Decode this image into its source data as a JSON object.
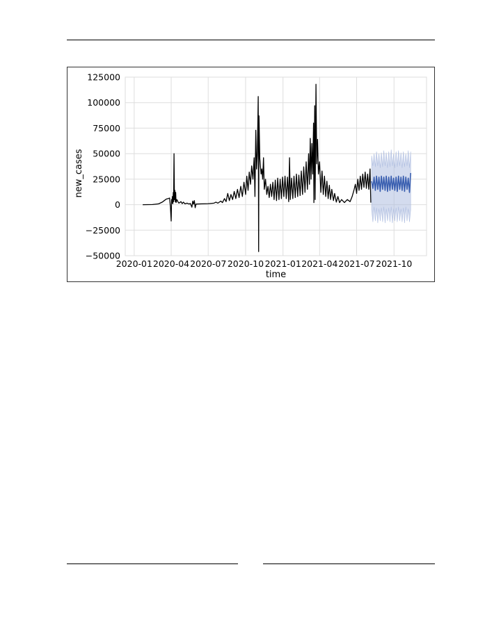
{
  "page": {
    "background": "#ffffff"
  },
  "chart_data": {
    "type": "line",
    "title": "",
    "xlabel": "time",
    "ylabel": "new_cases",
    "ylim": [
      -50000,
      125000
    ],
    "xlim": [
      "2019-12-10",
      "2021-12-20"
    ],
    "grid": true,
    "x_ticks": [
      "2020-01",
      "2020-04",
      "2020-07",
      "2020-10",
      "2021-01",
      "2021-04",
      "2021-07",
      "2021-10"
    ],
    "y_ticks": [
      "125000",
      "100000",
      "75000",
      "50000",
      "25000",
      "0",
      "−25000",
      "−50000"
    ],
    "colors": {
      "actual": "#000000",
      "forecast": "#3a5fb0",
      "interval": "#aebde0",
      "grid": "#dddddd"
    },
    "series": [
      {
        "role": "actual",
        "points": [
          [
            "2020-01-22",
            0
          ],
          [
            "2020-02-15",
            100
          ],
          [
            "2020-03-01",
            800
          ],
          [
            "2020-03-10",
            2500
          ],
          [
            "2020-03-15",
            4000
          ],
          [
            "2020-03-20",
            5500
          ],
          [
            "2020-03-25",
            6000
          ],
          [
            "2020-03-28",
            6500
          ],
          [
            "2020-03-30",
            -2000
          ],
          [
            "2020-04-01",
            -16000
          ],
          [
            "2020-04-02",
            5000
          ],
          [
            "2020-04-03",
            1500
          ],
          [
            "2020-04-04",
            8000
          ],
          [
            "2020-04-05",
            1000
          ],
          [
            "2020-04-06",
            12000
          ],
          [
            "2020-04-07",
            3000
          ],
          [
            "2020-04-08",
            50000
          ],
          [
            "2020-04-09",
            5000
          ],
          [
            "2020-04-10",
            14000
          ],
          [
            "2020-04-11",
            3000
          ],
          [
            "2020-04-12",
            12000
          ],
          [
            "2020-04-13",
            2000
          ],
          [
            "2020-04-15",
            5000
          ],
          [
            "2020-04-18",
            2500
          ],
          [
            "2020-04-20",
            1500
          ],
          [
            "2020-04-25",
            3000
          ],
          [
            "2020-04-28",
            1000
          ],
          [
            "2020-05-01",
            2500
          ],
          [
            "2020-05-05",
            800
          ],
          [
            "2020-05-10",
            1500
          ],
          [
            "2020-05-15",
            600
          ],
          [
            "2020-05-18",
            1200
          ],
          [
            "2020-05-22",
            -2500
          ],
          [
            "2020-05-24",
            3500
          ],
          [
            "2020-05-26",
            500
          ],
          [
            "2020-05-28",
            4000
          ],
          [
            "2020-05-30",
            -3000
          ],
          [
            "2020-06-01",
            600
          ],
          [
            "2020-06-15",
            800
          ],
          [
            "2020-07-01",
            1000
          ],
          [
            "2020-07-15",
            1500
          ],
          [
            "2020-07-20",
            2500
          ],
          [
            "2020-07-25",
            1500
          ],
          [
            "2020-08-01",
            3500
          ],
          [
            "2020-08-05",
            2000
          ],
          [
            "2020-08-10",
            6000
          ],
          [
            "2020-08-14",
            3000
          ],
          [
            "2020-08-18",
            11000
          ],
          [
            "2020-08-22",
            4000
          ],
          [
            "2020-08-26",
            10000
          ],
          [
            "2020-08-30",
            5000
          ],
          [
            "2020-09-03",
            13000
          ],
          [
            "2020-09-07",
            6000
          ],
          [
            "2020-09-11",
            15000
          ],
          [
            "2020-09-15",
            7000
          ],
          [
            "2020-09-19",
            18000
          ],
          [
            "2020-09-23",
            8000
          ],
          [
            "2020-09-27",
            22000
          ],
          [
            "2020-10-01",
            10000
          ],
          [
            "2020-10-04",
            28000
          ],
          [
            "2020-10-07",
            14000
          ],
          [
            "2020-10-10",
            32000
          ],
          [
            "2020-10-13",
            20000
          ],
          [
            "2020-10-16",
            38000
          ],
          [
            "2020-10-19",
            25000
          ],
          [
            "2020-10-22",
            46000
          ],
          [
            "2020-10-24",
            8000
          ],
          [
            "2020-10-26",
            73000
          ],
          [
            "2020-10-28",
            35000
          ],
          [
            "2020-10-30",
            52000
          ],
          [
            "2020-11-01",
            106000
          ],
          [
            "2020-11-02",
            -46000
          ],
          [
            "2020-11-03",
            87000
          ],
          [
            "2020-11-05",
            45000
          ],
          [
            "2020-11-08",
            30000
          ],
          [
            "2020-11-10",
            35000
          ],
          [
            "2020-11-12",
            25000
          ],
          [
            "2020-11-14",
            46000
          ],
          [
            "2020-11-16",
            15000
          ],
          [
            "2020-11-19",
            25000
          ],
          [
            "2020-11-22",
            10000
          ],
          [
            "2020-11-25",
            18000
          ],
          [
            "2020-11-28",
            7000
          ],
          [
            "2020-12-01",
            20000
          ],
          [
            "2020-12-04",
            8000
          ],
          [
            "2020-12-07",
            22000
          ],
          [
            "2020-12-10",
            5000
          ],
          [
            "2020-12-13",
            24000
          ],
          [
            "2020-12-16",
            4000
          ],
          [
            "2020-12-19",
            26000
          ],
          [
            "2020-12-22",
            5000
          ],
          [
            "2020-12-25",
            25000
          ],
          [
            "2020-12-28",
            6000
          ],
          [
            "2020-12-31",
            27000
          ],
          [
            "2021-01-03",
            8000
          ],
          [
            "2021-01-06",
            28000
          ],
          [
            "2021-01-09",
            6000
          ],
          [
            "2021-01-12",
            27000
          ],
          [
            "2021-01-15",
            3000
          ],
          [
            "2021-01-17",
            46000
          ],
          [
            "2021-01-19",
            5000
          ],
          [
            "2021-01-22",
            26000
          ],
          [
            "2021-01-25",
            6000
          ],
          [
            "2021-01-28",
            28000
          ],
          [
            "2021-01-31",
            7000
          ],
          [
            "2021-02-03",
            30000
          ],
          [
            "2021-02-06",
            8000
          ],
          [
            "2021-02-09",
            29000
          ],
          [
            "2021-02-12",
            9000
          ],
          [
            "2021-02-15",
            33000
          ],
          [
            "2021-02-18",
            10000
          ],
          [
            "2021-02-21",
            37000
          ],
          [
            "2021-02-24",
            12000
          ],
          [
            "2021-02-27",
            42000
          ],
          [
            "2021-03-02",
            15000
          ],
          [
            "2021-03-05",
            50000
          ],
          [
            "2021-03-07",
            20000
          ],
          [
            "2021-03-09",
            65000
          ],
          [
            "2021-03-11",
            25000
          ],
          [
            "2021-03-13",
            60000
          ],
          [
            "2021-03-15",
            30000
          ],
          [
            "2021-03-17",
            80000
          ],
          [
            "2021-03-18",
            2000
          ],
          [
            "2021-03-20",
            97000
          ],
          [
            "2021-03-21",
            5000
          ],
          [
            "2021-03-23",
            118000
          ],
          [
            "2021-03-25",
            40000
          ],
          [
            "2021-03-27",
            64000
          ],
          [
            "2021-03-29",
            30000
          ],
          [
            "2021-04-01",
            42000
          ],
          [
            "2021-04-04",
            12000
          ],
          [
            "2021-04-07",
            33000
          ],
          [
            "2021-04-10",
            10000
          ],
          [
            "2021-04-13",
            28000
          ],
          [
            "2021-04-16",
            8000
          ],
          [
            "2021-04-19",
            23000
          ],
          [
            "2021-04-22",
            6000
          ],
          [
            "2021-04-25",
            19000
          ],
          [
            "2021-04-28",
            5000
          ],
          [
            "2021-05-01",
            15000
          ],
          [
            "2021-05-05",
            4000
          ],
          [
            "2021-05-08",
            11000
          ],
          [
            "2021-05-12",
            2500
          ],
          [
            "2021-05-16",
            8000
          ],
          [
            "2021-05-20",
            2000
          ],
          [
            "2021-05-25",
            5000
          ],
          [
            "2021-06-01",
            2000
          ],
          [
            "2021-06-08",
            5000
          ],
          [
            "2021-06-15",
            3000
          ],
          [
            "2021-06-20",
            8000
          ],
          [
            "2021-06-25",
            15000
          ],
          [
            "2021-06-28",
            20000
          ],
          [
            "2021-07-01",
            11000
          ],
          [
            "2021-07-04",
            25000
          ],
          [
            "2021-07-07",
            14000
          ],
          [
            "2021-07-10",
            28000
          ],
          [
            "2021-07-13",
            15000
          ],
          [
            "2021-07-16",
            30000
          ],
          [
            "2021-07-19",
            17000
          ],
          [
            "2021-07-22",
            32000
          ],
          [
            "2021-07-25",
            16000
          ],
          [
            "2021-07-28",
            30000
          ],
          [
            "2021-07-31",
            15000
          ],
          [
            "2021-08-03",
            35000
          ],
          [
            "2021-08-05",
            2000
          ]
        ]
      },
      {
        "role": "forecast",
        "points": [
          [
            "2021-08-07",
            23000
          ],
          [
            "2021-08-10",
            16000
          ],
          [
            "2021-08-13",
            27000
          ],
          [
            "2021-08-16",
            14000
          ],
          [
            "2021-08-19",
            28000
          ],
          [
            "2021-08-22",
            15000
          ],
          [
            "2021-08-25",
            27000
          ],
          [
            "2021-08-28",
            13000
          ],
          [
            "2021-08-31",
            28000
          ],
          [
            "2021-09-03",
            15000
          ],
          [
            "2021-09-06",
            27000
          ],
          [
            "2021-09-09",
            14000
          ],
          [
            "2021-09-12",
            28000
          ],
          [
            "2021-09-15",
            13000
          ],
          [
            "2021-09-18",
            27000
          ],
          [
            "2021-09-21",
            14000
          ],
          [
            "2021-09-24",
            28000
          ],
          [
            "2021-09-27",
            15000
          ],
          [
            "2021-09-30",
            26000
          ],
          [
            "2021-10-03",
            14000
          ],
          [
            "2021-10-06",
            27000
          ],
          [
            "2021-10-09",
            13000
          ],
          [
            "2021-10-12",
            28000
          ],
          [
            "2021-10-15",
            15000
          ],
          [
            "2021-10-18",
            27000
          ],
          [
            "2021-10-21",
            14000
          ],
          [
            "2021-10-24",
            28000
          ],
          [
            "2021-10-27",
            13000
          ],
          [
            "2021-10-30",
            27000
          ],
          [
            "2021-11-02",
            15000
          ],
          [
            "2021-11-05",
            26000
          ],
          [
            "2021-11-08",
            12000
          ],
          [
            "2021-11-11",
            31000
          ]
        ],
        "interval_lower": [
          [
            "2021-08-07",
            -5000
          ],
          [
            "2021-08-10",
            -17000
          ],
          [
            "2021-08-13",
            -2000
          ],
          [
            "2021-08-16",
            -16000
          ],
          [
            "2021-08-19",
            -3000
          ],
          [
            "2021-08-22",
            -18000
          ],
          [
            "2021-08-25",
            -4000
          ],
          [
            "2021-08-28",
            -16000
          ],
          [
            "2021-08-31",
            -3000
          ],
          [
            "2021-09-03",
            -17000
          ],
          [
            "2021-09-06",
            -2000
          ],
          [
            "2021-09-09",
            -18000
          ],
          [
            "2021-09-12",
            -4000
          ],
          [
            "2021-09-15",
            -16000
          ],
          [
            "2021-09-18",
            -3000
          ],
          [
            "2021-09-21",
            -17000
          ],
          [
            "2021-09-24",
            -2000
          ],
          [
            "2021-09-27",
            -18000
          ],
          [
            "2021-09-30",
            -4000
          ],
          [
            "2021-10-03",
            -16000
          ],
          [
            "2021-10-06",
            -3000
          ],
          [
            "2021-10-09",
            -17000
          ],
          [
            "2021-10-12",
            -2000
          ],
          [
            "2021-10-15",
            -16000
          ],
          [
            "2021-10-18",
            -4000
          ],
          [
            "2021-10-21",
            -17000
          ],
          [
            "2021-10-24",
            -3000
          ],
          [
            "2021-10-27",
            -18000
          ],
          [
            "2021-10-30",
            -2000
          ],
          [
            "2021-11-02",
            -16000
          ],
          [
            "2021-11-05",
            -4000
          ],
          [
            "2021-11-08",
            -17000
          ],
          [
            "2021-11-11",
            -5000
          ]
        ],
        "interval_upper": [
          [
            "2021-08-07",
            48000
          ],
          [
            "2021-08-10",
            38000
          ],
          [
            "2021-08-13",
            50000
          ],
          [
            "2021-08-16",
            37000
          ],
          [
            "2021-08-19",
            52000
          ],
          [
            "2021-08-22",
            38000
          ],
          [
            "2021-08-25",
            50000
          ],
          [
            "2021-08-28",
            36000
          ],
          [
            "2021-08-31",
            51000
          ],
          [
            "2021-09-03",
            37000
          ],
          [
            "2021-09-06",
            53000
          ],
          [
            "2021-09-09",
            38000
          ],
          [
            "2021-09-12",
            51000
          ],
          [
            "2021-09-15",
            36000
          ],
          [
            "2021-09-18",
            52000
          ],
          [
            "2021-09-21",
            37000
          ],
          [
            "2021-09-24",
            54000
          ],
          [
            "2021-09-27",
            38000
          ],
          [
            "2021-09-30",
            50000
          ],
          [
            "2021-10-03",
            36000
          ],
          [
            "2021-10-06",
            52000
          ],
          [
            "2021-10-09",
            37000
          ],
          [
            "2021-10-12",
            53000
          ],
          [
            "2021-10-15",
            38000
          ],
          [
            "2021-10-18",
            51000
          ],
          [
            "2021-10-21",
            36000
          ],
          [
            "2021-10-24",
            52000
          ],
          [
            "2021-10-27",
            37000
          ],
          [
            "2021-10-30",
            50000
          ],
          [
            "2021-11-02",
            38000
          ],
          [
            "2021-11-05",
            53000
          ],
          [
            "2021-11-08",
            36000
          ],
          [
            "2021-11-11",
            52000
          ]
        ]
      }
    ]
  }
}
